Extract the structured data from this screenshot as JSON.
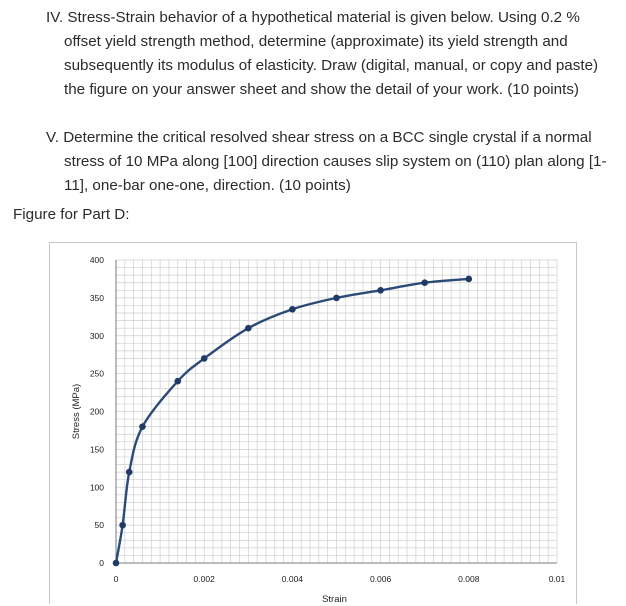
{
  "questions": [
    {
      "number": "IV.",
      "text": "Stress-Strain behavior of a hypothetical material is given below.  Using 0.2 % offset yield strength method, determine (approximate) its yield strength and subsequently its modulus of elasticity.  Draw (digital, manual, or copy and paste) the figure on your answer sheet and show the detail of your work.  (10 points)"
    },
    {
      "number": "V.",
      "text": "Determine the critical resolved shear stress on a BCC single crystal if a normal stress of 10 MPa along [100] direction causes slip system on (110) plan along [1-11], one-bar one-one, direction.  (10 points)"
    }
  ],
  "figure_label": "Figure for Part D:",
  "chart_data": {
    "type": "line",
    "xlabel": "Strain",
    "ylabel": "Stress (MPa)",
    "xlim": [
      0,
      0.01
    ],
    "ylim": [
      0,
      400
    ],
    "x_ticks": [
      "0",
      "0.002",
      "0.004",
      "0.006",
      "0.008",
      "0.01"
    ],
    "y_ticks": [
      "0",
      "50",
      "100",
      "150",
      "200",
      "250",
      "300",
      "350",
      "400"
    ],
    "grid": true,
    "series": [
      {
        "x": [
          0,
          0.00015,
          0.0003,
          0.0006,
          0.0014,
          0.002,
          0.003,
          0.004,
          0.005,
          0.006,
          0.007,
          0.008
        ],
        "y": [
          0,
          50,
          120,
          180,
          240,
          270,
          310,
          335,
          350,
          360,
          370,
          375
        ]
      }
    ],
    "colors": {
      "line": "#2b4a78",
      "marker": "#203a66",
      "grid": "#cfcfcf"
    }
  }
}
